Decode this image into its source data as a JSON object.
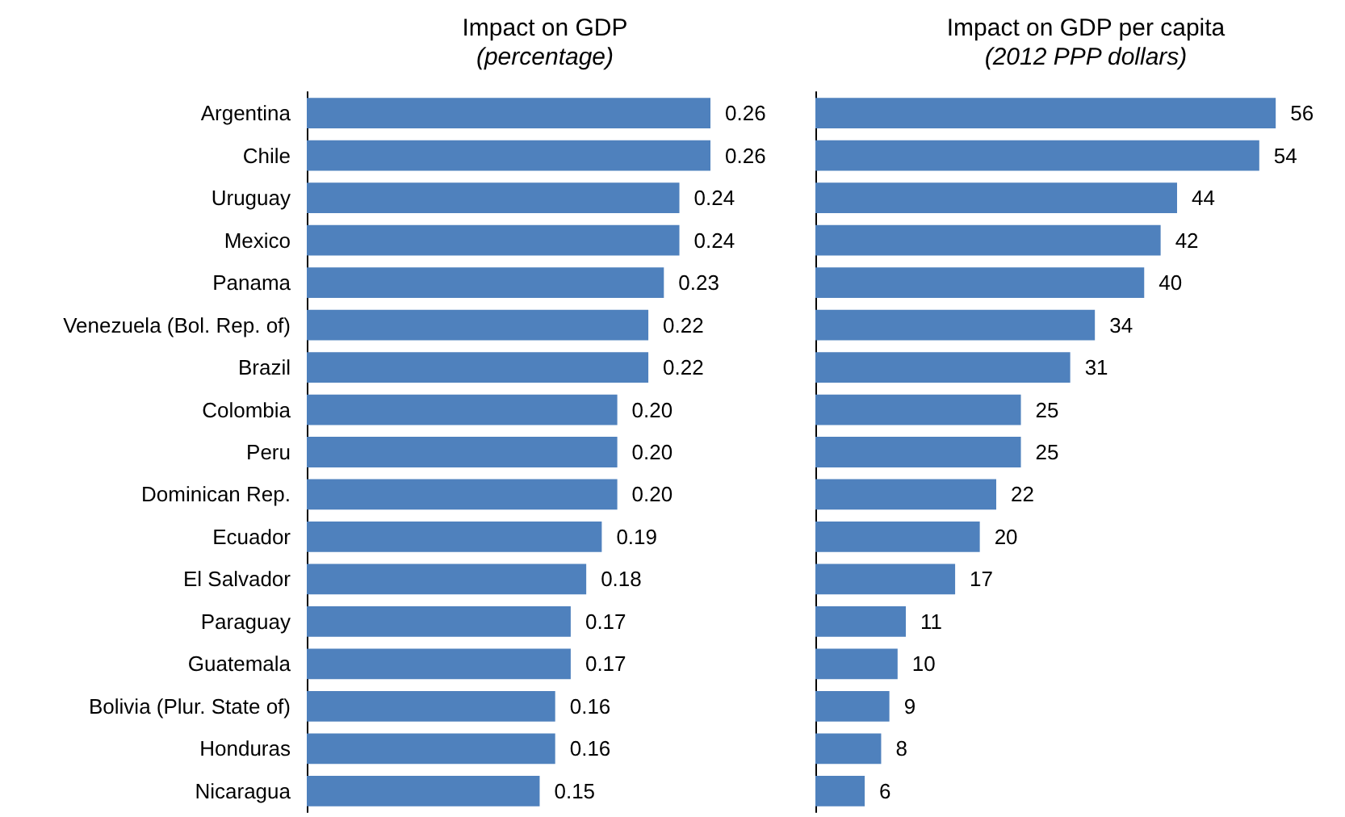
{
  "chart_data": [
    {
      "type": "bar",
      "orientation": "horizontal",
      "title": "Impact on GDP",
      "subtitle": "(percentage)",
      "categories": [
        "Argentina",
        "Chile",
        "Uruguay",
        "Mexico",
        "Panama",
        "Venezuela (Bol. Rep. of)",
        "Brazil",
        "Colombia",
        "Peru",
        "Dominican Rep.",
        "Ecuador",
        "El Salvador",
        "Paraguay",
        "Guatemala",
        "Bolivia (Plur. State of)",
        "Honduras",
        "Nicaragua"
      ],
      "values": [
        0.26,
        0.26,
        0.24,
        0.24,
        0.23,
        0.22,
        0.22,
        0.2,
        0.2,
        0.2,
        0.19,
        0.18,
        0.17,
        0.17,
        0.16,
        0.16,
        0.15
      ],
      "value_labels": [
        "0.26",
        "0.26",
        "0.24",
        "0.24",
        "0.23",
        "0.22",
        "0.22",
        "0.20",
        "0.20",
        "0.20",
        "0.19",
        "0.18",
        "0.17",
        "0.17",
        "0.16",
        "0.16",
        "0.15"
      ],
      "color": "#4f81bd",
      "tick_labels": "y"
    },
    {
      "type": "bar",
      "orientation": "horizontal",
      "title": "Impact on GDP per capita",
      "subtitle": "(2012 PPP dollars)",
      "categories": [
        null,
        null,
        null,
        null,
        null,
        null,
        null,
        null,
        null,
        null,
        null,
        null,
        null,
        null,
        null,
        null,
        null
      ],
      "values": [
        56,
        54,
        44,
        42,
        40,
        34,
        31,
        25,
        25,
        22,
        20,
        17,
        11,
        10,
        9,
        8,
        6
      ],
      "data_labels": true,
      "color": "#4f81bd",
      "tick_labels": false
    }
  ]
}
